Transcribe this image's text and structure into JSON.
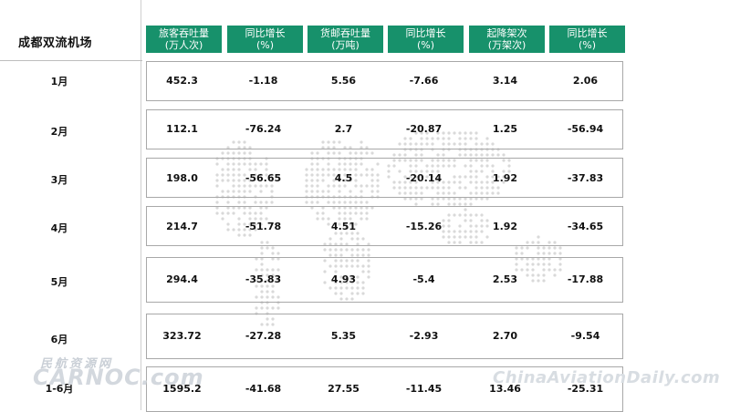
{
  "table": {
    "title": "成都双流机场",
    "headers": [
      {
        "line1": "旅客吞吐量",
        "line2": "(万人次)"
      },
      {
        "line1": "同比增长",
        "line2": "(%)"
      },
      {
        "line1": "货邮吞吐量",
        "line2": "(万吨)"
      },
      {
        "line1": "同比增长",
        "line2": "(%)"
      },
      {
        "line1": "起降架次",
        "line2": "(万架次)"
      },
      {
        "line1": "同比增长",
        "line2": "(%)"
      }
    ],
    "rows": [
      {
        "month": "1月",
        "values": [
          "452.3",
          "-1.18",
          "5.56",
          "-7.66",
          "3.14",
          "2.06"
        ]
      },
      {
        "month": "2月",
        "values": [
          "112.1",
          "-76.24",
          "2.7",
          "-20.87",
          "1.25",
          "-56.94"
        ]
      },
      {
        "month": "3月",
        "values": [
          "198.0",
          "-56.65",
          "4.5",
          "-20.14",
          "1.92",
          "-37.83"
        ]
      },
      {
        "month": "4月",
        "values": [
          "214.7",
          "-51.78",
          "4.51",
          "-15.26",
          "1.92",
          "-34.65"
        ]
      },
      {
        "month": "5月",
        "values": [
          "294.4",
          "-35.83",
          "4.93",
          "-5.4",
          "2.53",
          "-17.88"
        ]
      },
      {
        "month": "6月",
        "values": [
          "323.72",
          "-27.28",
          "5.35",
          "-2.93",
          "2.70",
          "-9.54"
        ]
      },
      {
        "month": "1-6月",
        "values": [
          "1595.2",
          "-41.68",
          "27.55",
          "-11.45",
          "13.46",
          "-25.31"
        ]
      }
    ]
  },
  "watermarks": {
    "cn_label": "民航资源网",
    "cn_url": "CARNOC.com",
    "right_url": "ChinaAviationDaily.com"
  },
  "colors": {
    "header_bg": "#17916b",
    "header_text": "#ffffff",
    "map_dots": "#d9d9d9",
    "border": "#a8a8a8"
  }
}
